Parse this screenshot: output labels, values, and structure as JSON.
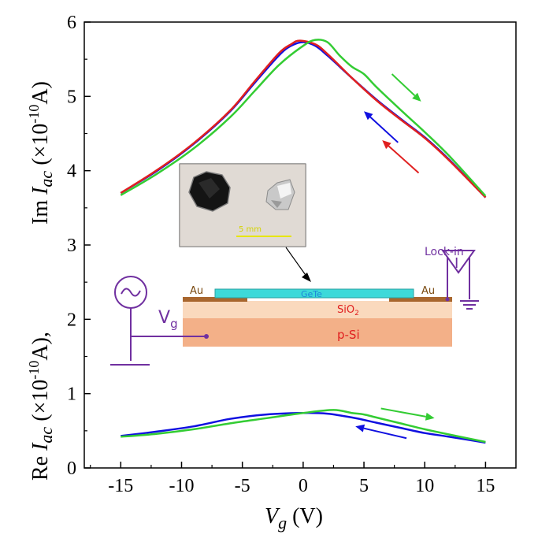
{
  "chart_data": {
    "type": "line",
    "x_ticks": [
      "-15",
      "-10",
      "-5",
      "0",
      "5",
      "10",
      "15"
    ],
    "y_ticks": [
      "0",
      "1",
      "2",
      "3",
      "4",
      "5",
      "6"
    ],
    "xlim": [
      -18,
      17.5
    ],
    "ylim": [
      0,
      6
    ],
    "xlabel": {
      "main": "V",
      "sub": "g",
      "unit": " (V)"
    },
    "ylabel_top": {
      "pre": "Im ",
      "var": "I",
      "sub": "ac",
      "unit": " (×10",
      "exp": "-10",
      "end": "A)"
    },
    "ylabel_bottom": {
      "pre": "Re ",
      "var": "I",
      "sub": "ac",
      "unit": " (×10",
      "exp": "-10",
      "end": "A),"
    },
    "series": [
      {
        "color": "#1010e0",
        "group": "im",
        "points": [
          [
            -15,
            3.7
          ],
          [
            -12,
            4.0
          ],
          [
            -9,
            4.36
          ],
          [
            -6,
            4.8
          ],
          [
            -4,
            5.18
          ],
          [
            -2,
            5.55
          ],
          [
            -1,
            5.68
          ],
          [
            0,
            5.73
          ],
          [
            1,
            5.68
          ],
          [
            2,
            5.55
          ],
          [
            4,
            5.25
          ],
          [
            6,
            4.96
          ],
          [
            8,
            4.7
          ],
          [
            10,
            4.45
          ],
          [
            12,
            4.15
          ],
          [
            15,
            3.64
          ]
        ]
      },
      {
        "color": "#e02020",
        "group": "im",
        "points": [
          [
            -15,
            3.7
          ],
          [
            -12,
            4.01
          ],
          [
            -9,
            4.37
          ],
          [
            -6,
            4.81
          ],
          [
            -4,
            5.2
          ],
          [
            -2,
            5.58
          ],
          [
            -1,
            5.7
          ],
          [
            -0.3,
            5.75
          ],
          [
            1,
            5.7
          ],
          [
            2,
            5.57
          ],
          [
            4,
            5.25
          ],
          [
            6,
            4.95
          ],
          [
            8,
            4.69
          ],
          [
            10,
            4.44
          ],
          [
            12,
            4.14
          ],
          [
            15,
            3.64
          ]
        ]
      },
      {
        "color": "#33cc33",
        "group": "im",
        "points": [
          [
            -15,
            3.67
          ],
          [
            -12,
            3.96
          ],
          [
            -9,
            4.3
          ],
          [
            -6,
            4.72
          ],
          [
            -4,
            5.07
          ],
          [
            -2,
            5.42
          ],
          [
            0,
            5.68
          ],
          [
            1,
            5.76
          ],
          [
            2,
            5.73
          ],
          [
            3,
            5.55
          ],
          [
            4,
            5.4
          ],
          [
            5,
            5.3
          ],
          [
            6,
            5.13
          ],
          [
            8,
            4.82
          ],
          [
            10,
            4.52
          ],
          [
            12,
            4.2
          ],
          [
            15,
            3.66
          ]
        ]
      },
      {
        "color": "#1010e0",
        "group": "re",
        "points": [
          [
            -15,
            0.43
          ],
          [
            -12,
            0.49
          ],
          [
            -9,
            0.56
          ],
          [
            -6,
            0.66
          ],
          [
            -3,
            0.72
          ],
          [
            0,
            0.74
          ],
          [
            2,
            0.73
          ],
          [
            4,
            0.68
          ],
          [
            6,
            0.61
          ],
          [
            8,
            0.54
          ],
          [
            10,
            0.47
          ],
          [
            12,
            0.42
          ],
          [
            15,
            0.34
          ]
        ]
      },
      {
        "color": "#33cc33",
        "group": "re",
        "points": [
          [
            -15,
            0.42
          ],
          [
            -12,
            0.46
          ],
          [
            -9,
            0.52
          ],
          [
            -6,
            0.6
          ],
          [
            -3,
            0.67
          ],
          [
            0,
            0.74
          ],
          [
            2.5,
            0.78
          ],
          [
            4,
            0.74
          ],
          [
            5,
            0.72
          ],
          [
            6,
            0.68
          ],
          [
            8,
            0.6
          ],
          [
            10,
            0.52
          ],
          [
            12,
            0.45
          ],
          [
            15,
            0.35
          ]
        ]
      }
    ],
    "arrows": [
      {
        "color": "#33cc33",
        "from": [
          7.3,
          5.3
        ],
        "to": [
          9.7,
          4.93
        ]
      },
      {
        "color": "#1010e0",
        "from": [
          7.8,
          4.38
        ],
        "to": [
          5.0,
          4.8
        ]
      },
      {
        "color": "#e02020",
        "from": [
          9.5,
          3.97
        ],
        "to": [
          6.5,
          4.41
        ]
      },
      {
        "color": "#33cc33",
        "from": [
          6.4,
          0.8
        ],
        "to": [
          10.8,
          0.67
        ]
      },
      {
        "color": "#1010e0",
        "from": [
          8.5,
          0.4
        ],
        "to": [
          4.3,
          0.56
        ]
      }
    ]
  },
  "schematic": {
    "au_left": "Au",
    "au_right": "Au",
    "gete": "GeTe",
    "sio2_main": "SiO",
    "sio2_sub": "2",
    "psi": "p-Si",
    "vg_main": "V",
    "vg_sub": "g",
    "lockin": "Lock-in",
    "lockin_symbol": "I",
    "scale_bar": "5 mm",
    "colors": {
      "purple": "#7030a0",
      "gete": "#3dd9d9",
      "au": "#a8662e",
      "sio2": "#fad9bd",
      "psi": "#f3b088"
    }
  }
}
